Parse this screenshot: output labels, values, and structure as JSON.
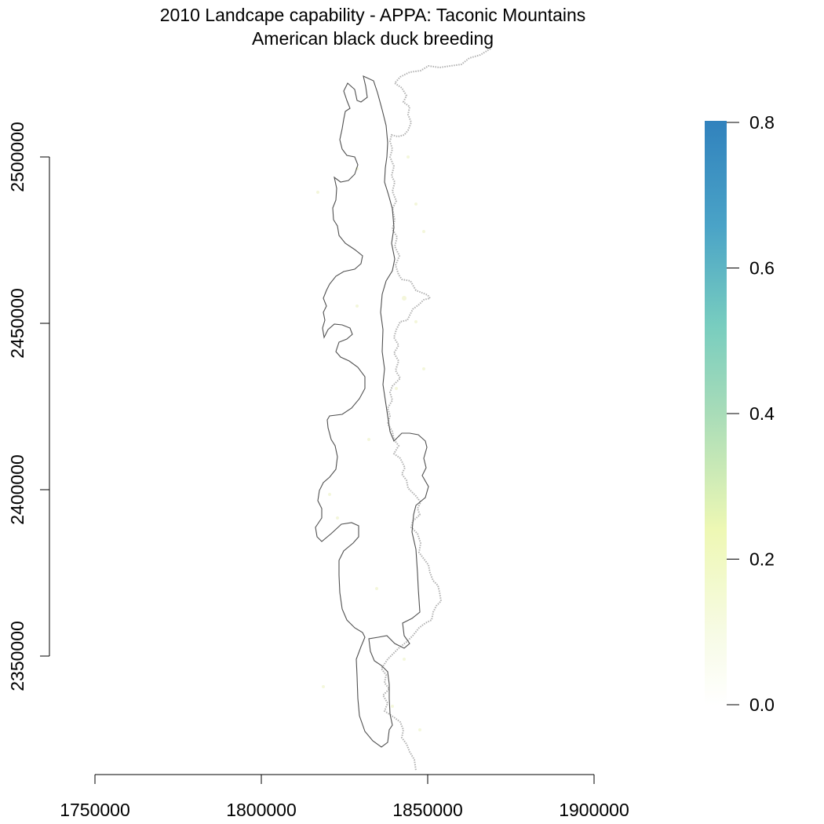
{
  "title": "2010 Landcape capability - APPA: Taconic Mountains",
  "subtitle": "American black duck breeding",
  "x_axis": {
    "range": [
      1750000,
      1900000
    ],
    "ticks": [
      1750000,
      1800000,
      1850000,
      1900000
    ],
    "tick_labels": [
      "1750000",
      "1800000",
      "1850000",
      "1900000"
    ]
  },
  "y_axis": {
    "range": [
      2350000,
      2500000
    ],
    "ticks": [
      2350000,
      2400000,
      2450000,
      2500000
    ],
    "tick_labels": [
      "2350000",
      "2400000",
      "2450000",
      "2500000"
    ]
  },
  "legend": {
    "type": "continuous color bar",
    "ticks": [
      0.0,
      0.2,
      0.4,
      0.6,
      0.8
    ],
    "tick_labels": [
      "0.0",
      "0.2",
      "0.4",
      "0.6",
      "0.8"
    ],
    "colors": [
      "#ffffff",
      "#f7fbe6",
      "#eef8b4",
      "#a8dcb8",
      "#78cdbf",
      "#4aa3c7",
      "#3182bd"
    ],
    "placement": "right"
  },
  "map_layers": {
    "study_area_outline_color": "#555555",
    "state_boundary_color": "#b0b0b0",
    "capability_values": "near 0 everywhere (very faint yellow speckles)"
  }
}
